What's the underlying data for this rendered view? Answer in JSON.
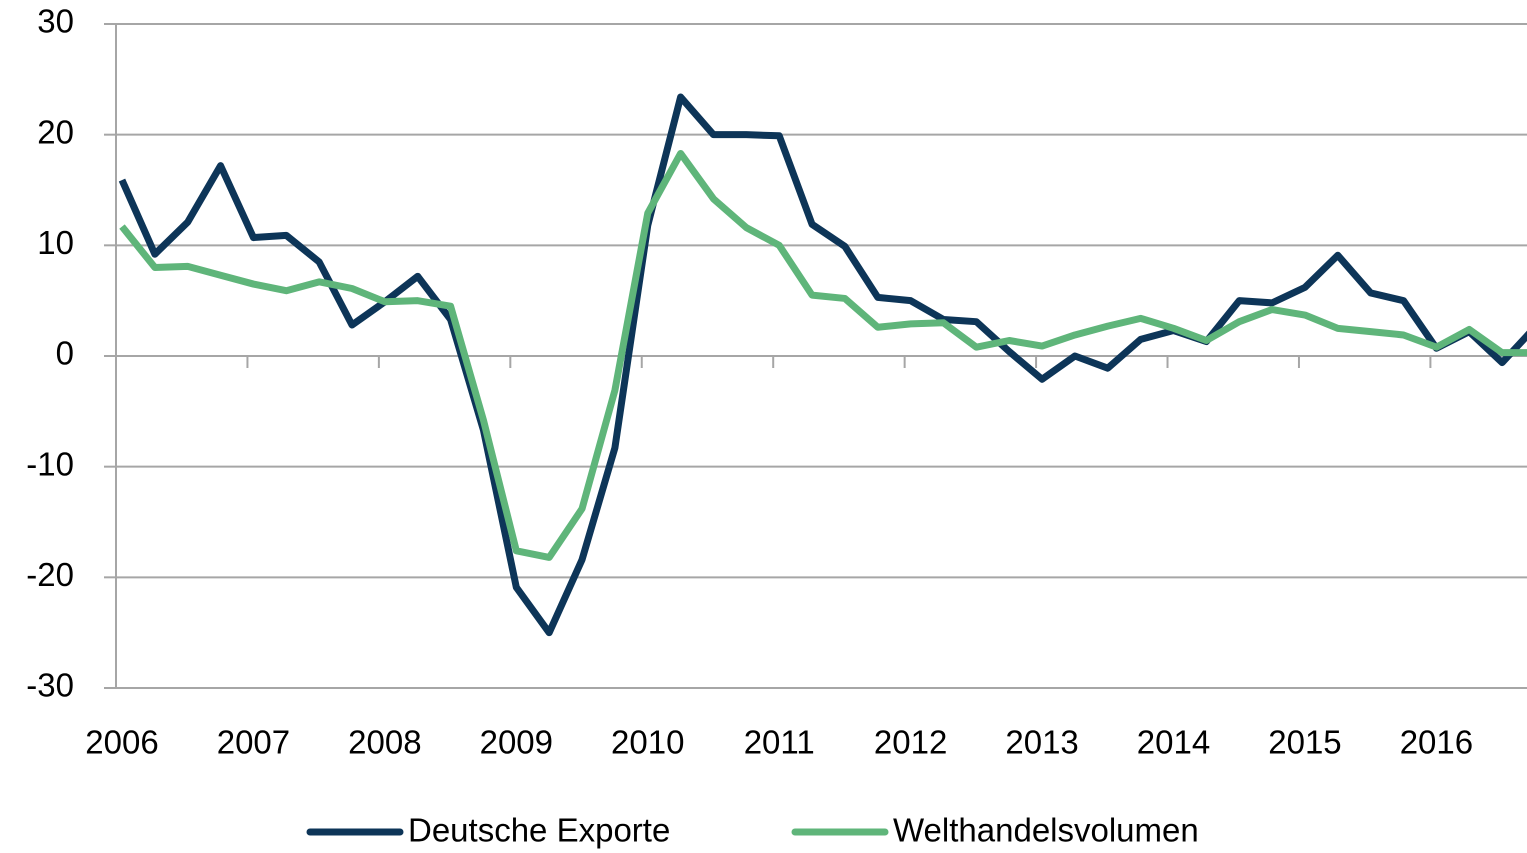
{
  "chart_data": {
    "type": "line",
    "categories": [
      "2006",
      null,
      null,
      null,
      "2007",
      null,
      null,
      null,
      "2008",
      null,
      null,
      null,
      "2009",
      null,
      null,
      null,
      "2010",
      null,
      null,
      null,
      "2011",
      null,
      null,
      null,
      "2012",
      null,
      null,
      null,
      "2013",
      null,
      null,
      null,
      "2014",
      null,
      null,
      null,
      "2015",
      null,
      null,
      null,
      "2016",
      null,
      null,
      null
    ],
    "series": [
      {
        "name": "Deutsche Exporte",
        "color": "#0d3558",
        "values": [
          15.9,
          9.2,
          12.1,
          17.2,
          10.7,
          10.9,
          8.5,
          2.8,
          4.9,
          7.2,
          3.3,
          -6.7,
          -20.9,
          -25.0,
          -18.4,
          -8.3,
          11.8,
          23.4,
          20.0,
          20.0,
          19.9,
          11.9,
          9.9,
          5.3,
          5.0,
          3.3,
          3.1,
          0.4,
          -2.1,
          0.0,
          -1.1,
          1.5,
          2.3,
          1.3,
          5.0,
          4.8,
          6.2,
          9.1,
          5.7,
          5.0,
          0.7,
          2.2,
          -0.6,
          2.6
        ]
      },
      {
        "name": "Welthandelsvolumen",
        "color": "#5fb57a",
        "values": [
          11.7,
          8.0,
          8.1,
          7.3,
          6.5,
          5.9,
          6.7,
          6.1,
          4.9,
          5.0,
          4.5,
          -5.8,
          -17.6,
          -18.2,
          -13.8,
          -3.1,
          12.9,
          18.3,
          14.2,
          11.6,
          10.0,
          5.5,
          5.2,
          2.6,
          2.9,
          3.0,
          0.8,
          1.4,
          0.9,
          1.9,
          2.7,
          3.4,
          2.5,
          1.4,
          3.1,
          4.2,
          3.7,
          2.5,
          2.2,
          1.9,
          0.8,
          2.4,
          0.3,
          0.3
        ]
      }
    ],
    "ylim": [
      -30,
      30
    ],
    "yticks": [
      -30,
      -20,
      -10,
      0,
      10,
      20,
      30
    ],
    "grid": true,
    "legend": "bottom"
  }
}
